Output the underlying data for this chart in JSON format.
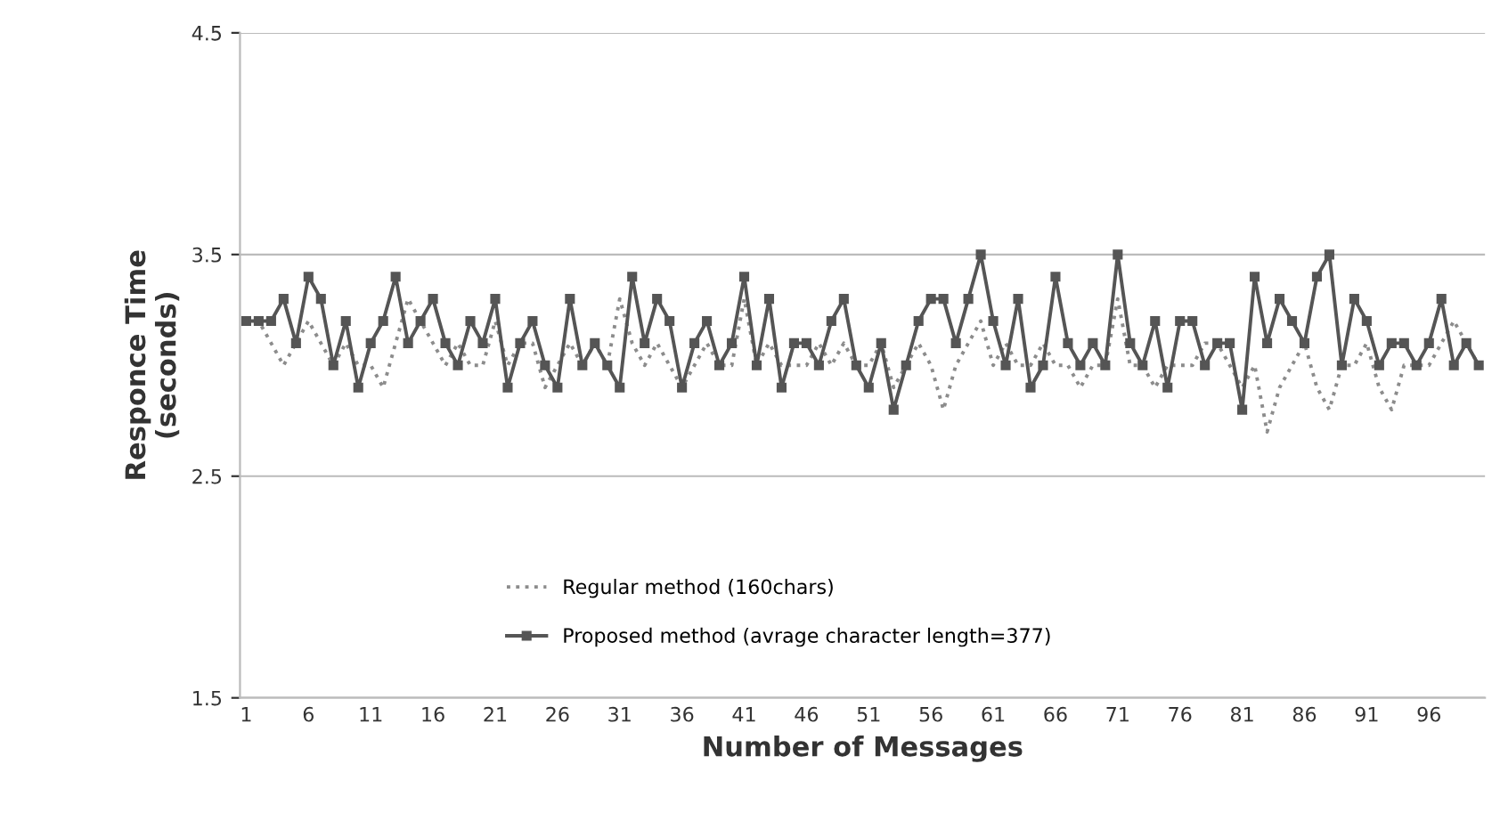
{
  "chart_data": {
    "type": "line",
    "xlabel": "Number of Messages",
    "ylabel": "Responce Time\n(seconds)",
    "categories": [
      "1",
      null,
      null,
      null,
      null,
      "6",
      null,
      null,
      null,
      null,
      "11",
      null,
      null,
      null,
      null,
      "16",
      null,
      null,
      null,
      null,
      "21",
      null,
      null,
      null,
      null,
      "26",
      null,
      null,
      null,
      null,
      "31",
      null,
      null,
      null,
      null,
      "36",
      null,
      null,
      null,
      null,
      "41",
      null,
      null,
      null,
      null,
      "46",
      null,
      null,
      null,
      null,
      "51",
      null,
      null,
      null,
      null,
      "56",
      null,
      null,
      null,
      null,
      "61",
      null,
      null,
      null,
      null,
      "66",
      null,
      null,
      null,
      null,
      "71",
      null,
      null,
      null,
      null,
      "76",
      null,
      null,
      null,
      null,
      "81",
      null,
      null,
      null,
      null,
      "86",
      null,
      null,
      null,
      null,
      "91",
      null,
      null,
      null,
      null,
      "96",
      null,
      null,
      null,
      null
    ],
    "series": [
      {
        "name": "Regular method (160chars)",
        "color": "#8c8c8c",
        "line_style": "dotted",
        "marker": "none",
        "values": [
          3.2,
          3.2,
          3.1,
          3.0,
          3.1,
          3.2,
          3.1,
          3.0,
          3.1,
          3.0,
          3.0,
          2.9,
          3.1,
          3.3,
          3.2,
          3.1,
          3.0,
          3.1,
          3.0,
          3.0,
          3.2,
          3.0,
          3.1,
          3.1,
          2.9,
          3.0,
          3.1,
          3.0,
          3.1,
          3.0,
          3.3,
          3.1,
          3.0,
          3.1,
          3.0,
          2.9,
          3.0,
          3.1,
          3.0,
          3.0,
          3.3,
          3.0,
          3.1,
          3.0,
          3.0,
          3.0,
          3.1,
          3.0,
          3.1,
          3.0,
          3.0,
          3.1,
          2.9,
          3.0,
          3.1,
          3.0,
          2.8,
          3.0,
          3.1,
          3.2,
          3.0,
          3.1,
          3.0,
          3.0,
          3.1,
          3.0,
          3.0,
          2.9,
          3.0,
          3.0,
          3.3,
          3.0,
          3.0,
          2.9,
          3.0,
          3.0,
          3.0,
          3.1,
          3.1,
          3.0,
          2.9,
          3.0,
          2.7,
          2.9,
          3.0,
          3.1,
          2.9,
          2.8,
          3.0,
          3.0,
          3.1,
          2.9,
          2.8,
          3.0,
          3.0,
          3.0,
          3.1,
          3.2,
          3.1,
          3.0
        ]
      },
      {
        "name": "Proposed method (avrage character length=377)",
        "color": "#555555",
        "line_style": "solid",
        "marker": "square",
        "values": [
          3.2,
          3.2,
          3.2,
          3.3,
          3.1,
          3.4,
          3.3,
          3.0,
          3.2,
          2.9,
          3.1,
          3.2,
          3.4,
          3.1,
          3.2,
          3.3,
          3.1,
          3.0,
          3.2,
          3.1,
          3.3,
          2.9,
          3.1,
          3.2,
          3.0,
          2.9,
          3.3,
          3.0,
          3.1,
          3.0,
          2.9,
          3.4,
          3.1,
          3.3,
          3.2,
          2.9,
          3.1,
          3.2,
          3.0,
          3.1,
          3.4,
          3.0,
          3.3,
          2.9,
          3.1,
          3.1,
          3.0,
          3.2,
          3.3,
          3.0,
          2.9,
          3.1,
          2.8,
          3.0,
          3.2,
          3.3,
          3.3,
          3.1,
          3.3,
          3.5,
          3.2,
          3.0,
          3.3,
          2.9,
          3.0,
          3.4,
          3.1,
          3.0,
          3.1,
          3.0,
          3.5,
          3.1,
          3.0,
          3.2,
          2.9,
          3.2,
          3.2,
          3.0,
          3.1,
          3.1,
          2.8,
          3.4,
          3.1,
          3.3,
          3.2,
          3.1,
          3.4,
          3.5,
          3.0,
          3.3,
          3.2,
          3.0,
          3.1,
          3.1,
          3.0,
          3.1,
          3.3,
          3.0,
          3.1,
          3.0
        ]
      }
    ],
    "ylim": [
      1.5,
      4.5
    ],
    "yticks": [
      1.5,
      2.5,
      3.5,
      4.5
    ],
    "grid": "y",
    "legend": "bottom"
  }
}
